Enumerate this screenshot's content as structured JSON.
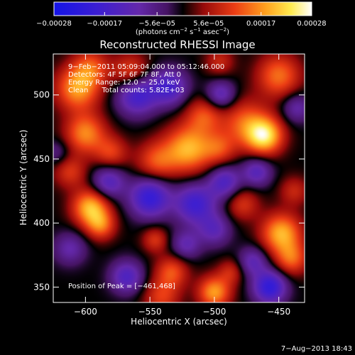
{
  "chart_data": {
    "type": "heatmap",
    "title": "Reconstructed RHESSI Image",
    "xlabel": "Heliocentric X (arcsec)",
    "ylabel": "Heliocentric Y (arcsec)",
    "xlim": [
      -625,
      -430
    ],
    "ylim": [
      338,
      532
    ],
    "xticks": [
      -600,
      -550,
      -500,
      -450
    ],
    "yticks": [
      350,
      400,
      450,
      500
    ],
    "xtick_labels": [
      "−600",
      "−550",
      "−500",
      "−450"
    ],
    "ytick_labels": [
      "350",
      "400",
      "450",
      "500"
    ],
    "colorbar": {
      "range": [
        -0.00028,
        0.00028
      ],
      "ticks": [
        -0.00028,
        -0.00017,
        -5.6e-05,
        5.6e-05,
        0.00017,
        0.00028
      ],
      "tick_labels": [
        "−0.00028",
        "−0.00017",
        "−5.6e−05",
        "5.6e−05",
        "0.00017",
        "0.00028"
      ],
      "unit_parts": [
        "(photons cm",
        "−2",
        " s",
        "−1",
        " asec",
        "−2",
        ")"
      ]
    },
    "annotations": [
      "9−Feb−2011 05:09:04.000 to 05:12:46.000",
      "Detectors: 4F 5F 6F 7F 8F, Att 0",
      "Energy Range: 12.0 − 25.0 keV",
      "Clean      Total counts: 5.82E+03"
    ],
    "peak_label": "Position of Peak = [−461,468]",
    "peak": {
      "x": -461,
      "y": 468
    },
    "sources": [
      {
        "x": -461,
        "y": 468,
        "w": 0.00028,
        "s": 10
      },
      {
        "x": -476,
        "y": 478,
        "w": 0.00016,
        "s": 13
      },
      {
        "x": -520,
        "y": 458,
        "w": 0.00024,
        "s": 13
      },
      {
        "x": -545,
        "y": 448,
        "w": 0.00015,
        "s": 11
      },
      {
        "x": -508,
        "y": 484,
        "w": 0.00014,
        "s": 10
      },
      {
        "x": -496,
        "y": 458,
        "w": 0.00012,
        "s": 9
      },
      {
        "x": -606,
        "y": 505,
        "w": 0.00022,
        "s": 12
      },
      {
        "x": -565,
        "y": 518,
        "w": 0.00015,
        "s": 10
      },
      {
        "x": -596,
        "y": 522,
        "w": 0.00014,
        "s": 10
      },
      {
        "x": -600,
        "y": 470,
        "w": 0.0002,
        "s": 11
      },
      {
        "x": -580,
        "y": 455,
        "w": 0.00013,
        "s": 9
      },
      {
        "x": -612,
        "y": 440,
        "w": 0.00012,
        "s": 9
      },
      {
        "x": -596,
        "y": 412,
        "w": 0.00025,
        "s": 10
      },
      {
        "x": -588,
        "y": 398,
        "w": 0.00016,
        "s": 8
      },
      {
        "x": -546,
        "y": 387,
        "w": 0.00012,
        "s": 7
      },
      {
        "x": -533,
        "y": 362,
        "w": 0.00015,
        "s": 9
      },
      {
        "x": -541,
        "y": 342,
        "w": 0.00013,
        "s": 10
      },
      {
        "x": -500,
        "y": 346,
        "w": 0.00022,
        "s": 9
      },
      {
        "x": -487,
        "y": 362,
        "w": 0.0001,
        "s": 7
      },
      {
        "x": -448,
        "y": 392,
        "w": 0.00024,
        "s": 11
      },
      {
        "x": -440,
        "y": 372,
        "w": 0.00016,
        "s": 9
      },
      {
        "x": -478,
        "y": 415,
        "w": 0.00012,
        "s": 9
      },
      {
        "x": -438,
        "y": 425,
        "w": 0.0001,
        "s": 8
      },
      {
        "x": -450,
        "y": 515,
        "w": 0.00018,
        "s": 12
      },
      {
        "x": -496,
        "y": 526,
        "w": 0.0001,
        "s": 8
      },
      {
        "x": -560,
        "y": 500,
        "w": -0.00022,
        "s": 11
      },
      {
        "x": -535,
        "y": 506,
        "w": -0.0002,
        "s": 10
      },
      {
        "x": -495,
        "y": 500,
        "w": -0.00016,
        "s": 8
      },
      {
        "x": -582,
        "y": 432,
        "w": -0.00017,
        "s": 9
      },
      {
        "x": -550,
        "y": 420,
        "w": -0.00025,
        "s": 11
      },
      {
        "x": -515,
        "y": 415,
        "w": -0.00022,
        "s": 11
      },
      {
        "x": -492,
        "y": 432,
        "w": -0.00018,
        "s": 9
      },
      {
        "x": -467,
        "y": 440,
        "w": -0.00016,
        "s": 8
      },
      {
        "x": -500,
        "y": 395,
        "w": -0.00014,
        "s": 9
      },
      {
        "x": -568,
        "y": 358,
        "w": -0.00018,
        "s": 9
      },
      {
        "x": -522,
        "y": 383,
        "w": -0.00013,
        "s": 8
      },
      {
        "x": -470,
        "y": 370,
        "w": -0.00014,
        "s": 8
      },
      {
        "x": -457,
        "y": 350,
        "w": -0.00026,
        "s": 9
      },
      {
        "x": -436,
        "y": 490,
        "w": -0.00012,
        "s": 8
      },
      {
        "x": -612,
        "y": 380,
        "w": -0.00012,
        "s": 9
      },
      {
        "x": -622,
        "y": 455,
        "w": -8e-05,
        "s": 7
      }
    ]
  },
  "footer": {
    "timestamp": "7−Aug−2013 18:43"
  }
}
